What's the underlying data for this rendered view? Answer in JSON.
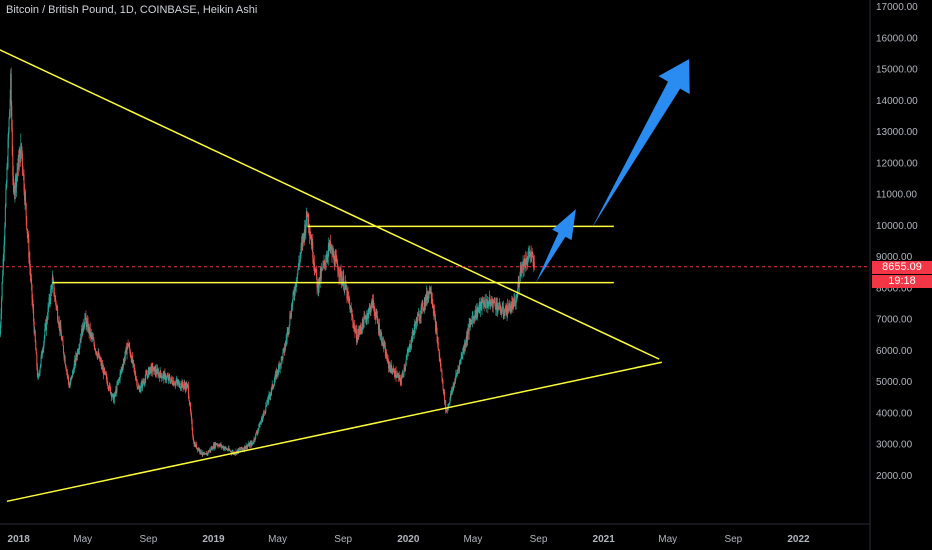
{
  "header": {
    "title": "Bitcoin / British Pound, 1D, COINBASE, Heikin Ashi"
  },
  "price_badge": {
    "price": "8655.09",
    "countdown": "19:18",
    "color": "#f23645"
  },
  "colors": {
    "background": "#000000",
    "up_candle": "#26a69a",
    "down_candle": "#ef5350",
    "trendline": "#ffff3a",
    "arrow": "#2a8cf0",
    "axis_text": "#b2b5be",
    "current_price_line": "#f23645"
  },
  "chart_data": {
    "type": "candlestick",
    "title": "Bitcoin / British Pound, 1D, COINBASE, Heikin Ashi",
    "xlabel": "",
    "ylabel": "",
    "ylim": [
      1000,
      17000
    ],
    "x_range": [
      "2017-11-27",
      "2022-05-15"
    ],
    "grid": false,
    "y_ticks": [
      "2000.00",
      "3000.00",
      "4000.00",
      "5000.00",
      "6000.00",
      "7000.00",
      "8000.00",
      "9000.00",
      "10000.00",
      "11000.00",
      "12000.00",
      "13000.00",
      "14000.00",
      "15000.00",
      "16000.00",
      "17000.00"
    ],
    "x_ticks": [
      {
        "label": "2018",
        "date": "2018-01-01"
      },
      {
        "label": "May",
        "date": "2018-05-01"
      },
      {
        "label": "Sep",
        "date": "2018-09-01"
      },
      {
        "label": "2019",
        "date": "2019-01-01"
      },
      {
        "label": "May",
        "date": "2019-05-01"
      },
      {
        "label": "Sep",
        "date": "2019-09-01"
      },
      {
        "label": "2020",
        "date": "2020-01-01"
      },
      {
        "label": "May",
        "date": "2020-05-01"
      },
      {
        "label": "Sep",
        "date": "2020-09-01"
      },
      {
        "label": "2021",
        "date": "2021-01-01"
      },
      {
        "label": "May",
        "date": "2021-05-01"
      },
      {
        "label": "Sep",
        "date": "2021-09-01"
      },
      {
        "label": "2022",
        "date": "2022-01-01"
      }
    ],
    "current_price": 8655.09,
    "price_path": [
      [
        "2017-11-27",
        6500
      ],
      [
        "2017-12-17",
        14500
      ],
      [
        "2017-12-22",
        11000
      ],
      [
        "2018-01-06",
        12500
      ],
      [
        "2018-02-06",
        5000
      ],
      [
        "2018-03-05",
        8200
      ],
      [
        "2018-04-06",
        4800
      ],
      [
        "2018-05-05",
        7000
      ],
      [
        "2018-06-28",
        4400
      ],
      [
        "2018-07-25",
        6200
      ],
      [
        "2018-08-14",
        4700
      ],
      [
        "2018-09-05",
        5400
      ],
      [
        "2018-10-15",
        5000
      ],
      [
        "2018-11-14",
        4800
      ],
      [
        "2018-11-25",
        3000
      ],
      [
        "2018-12-15",
        2600
      ],
      [
        "2019-01-06",
        3000
      ],
      [
        "2019-02-08",
        2700
      ],
      [
        "2019-03-15",
        3000
      ],
      [
        "2019-04-02",
        3800
      ],
      [
        "2019-05-14",
        6000
      ],
      [
        "2019-06-26",
        10400
      ],
      [
        "2019-07-15",
        8000
      ],
      [
        "2019-08-06",
        9300
      ],
      [
        "2019-09-05",
        8000
      ],
      [
        "2019-09-26",
        6400
      ],
      [
        "2019-10-26",
        7500
      ],
      [
        "2019-11-25",
        5500
      ],
      [
        "2019-12-18",
        5000
      ],
      [
        "2020-01-14",
        6800
      ],
      [
        "2020-02-12",
        8000
      ],
      [
        "2020-03-12",
        4000
      ],
      [
        "2020-04-29",
        7000
      ],
      [
        "2020-05-20",
        7500
      ],
      [
        "2020-06-10",
        7500
      ],
      [
        "2020-06-27",
        7200
      ],
      [
        "2020-07-21",
        7500
      ],
      [
        "2020-07-29",
        8600
      ],
      [
        "2020-08-17",
        9100
      ],
      [
        "2020-08-24",
        8600
      ]
    ],
    "annotations": {
      "trendlines": [
        {
          "from": [
            "2017-11-20",
            15650
          ],
          "to": [
            "2021-04-15",
            5700
          ]
        },
        {
          "from": [
            "2017-12-10",
            1150
          ],
          "to": [
            "2021-04-20",
            5600
          ]
        },
        {
          "from": [
            "2019-06-26",
            9950
          ],
          "to": [
            "2021-01-20",
            9950
          ]
        },
        {
          "from": [
            "2018-03-05",
            8150
          ],
          "to": [
            "2021-01-20",
            8150
          ]
        }
      ],
      "arrows": [
        {
          "from": [
            "2020-08-27",
            8150
          ],
          "to": [
            "2020-11-10",
            10500
          ]
        },
        {
          "from": [
            "2020-12-10",
            9900
          ],
          "to": [
            "2021-06-10",
            15300
          ]
        }
      ]
    }
  }
}
